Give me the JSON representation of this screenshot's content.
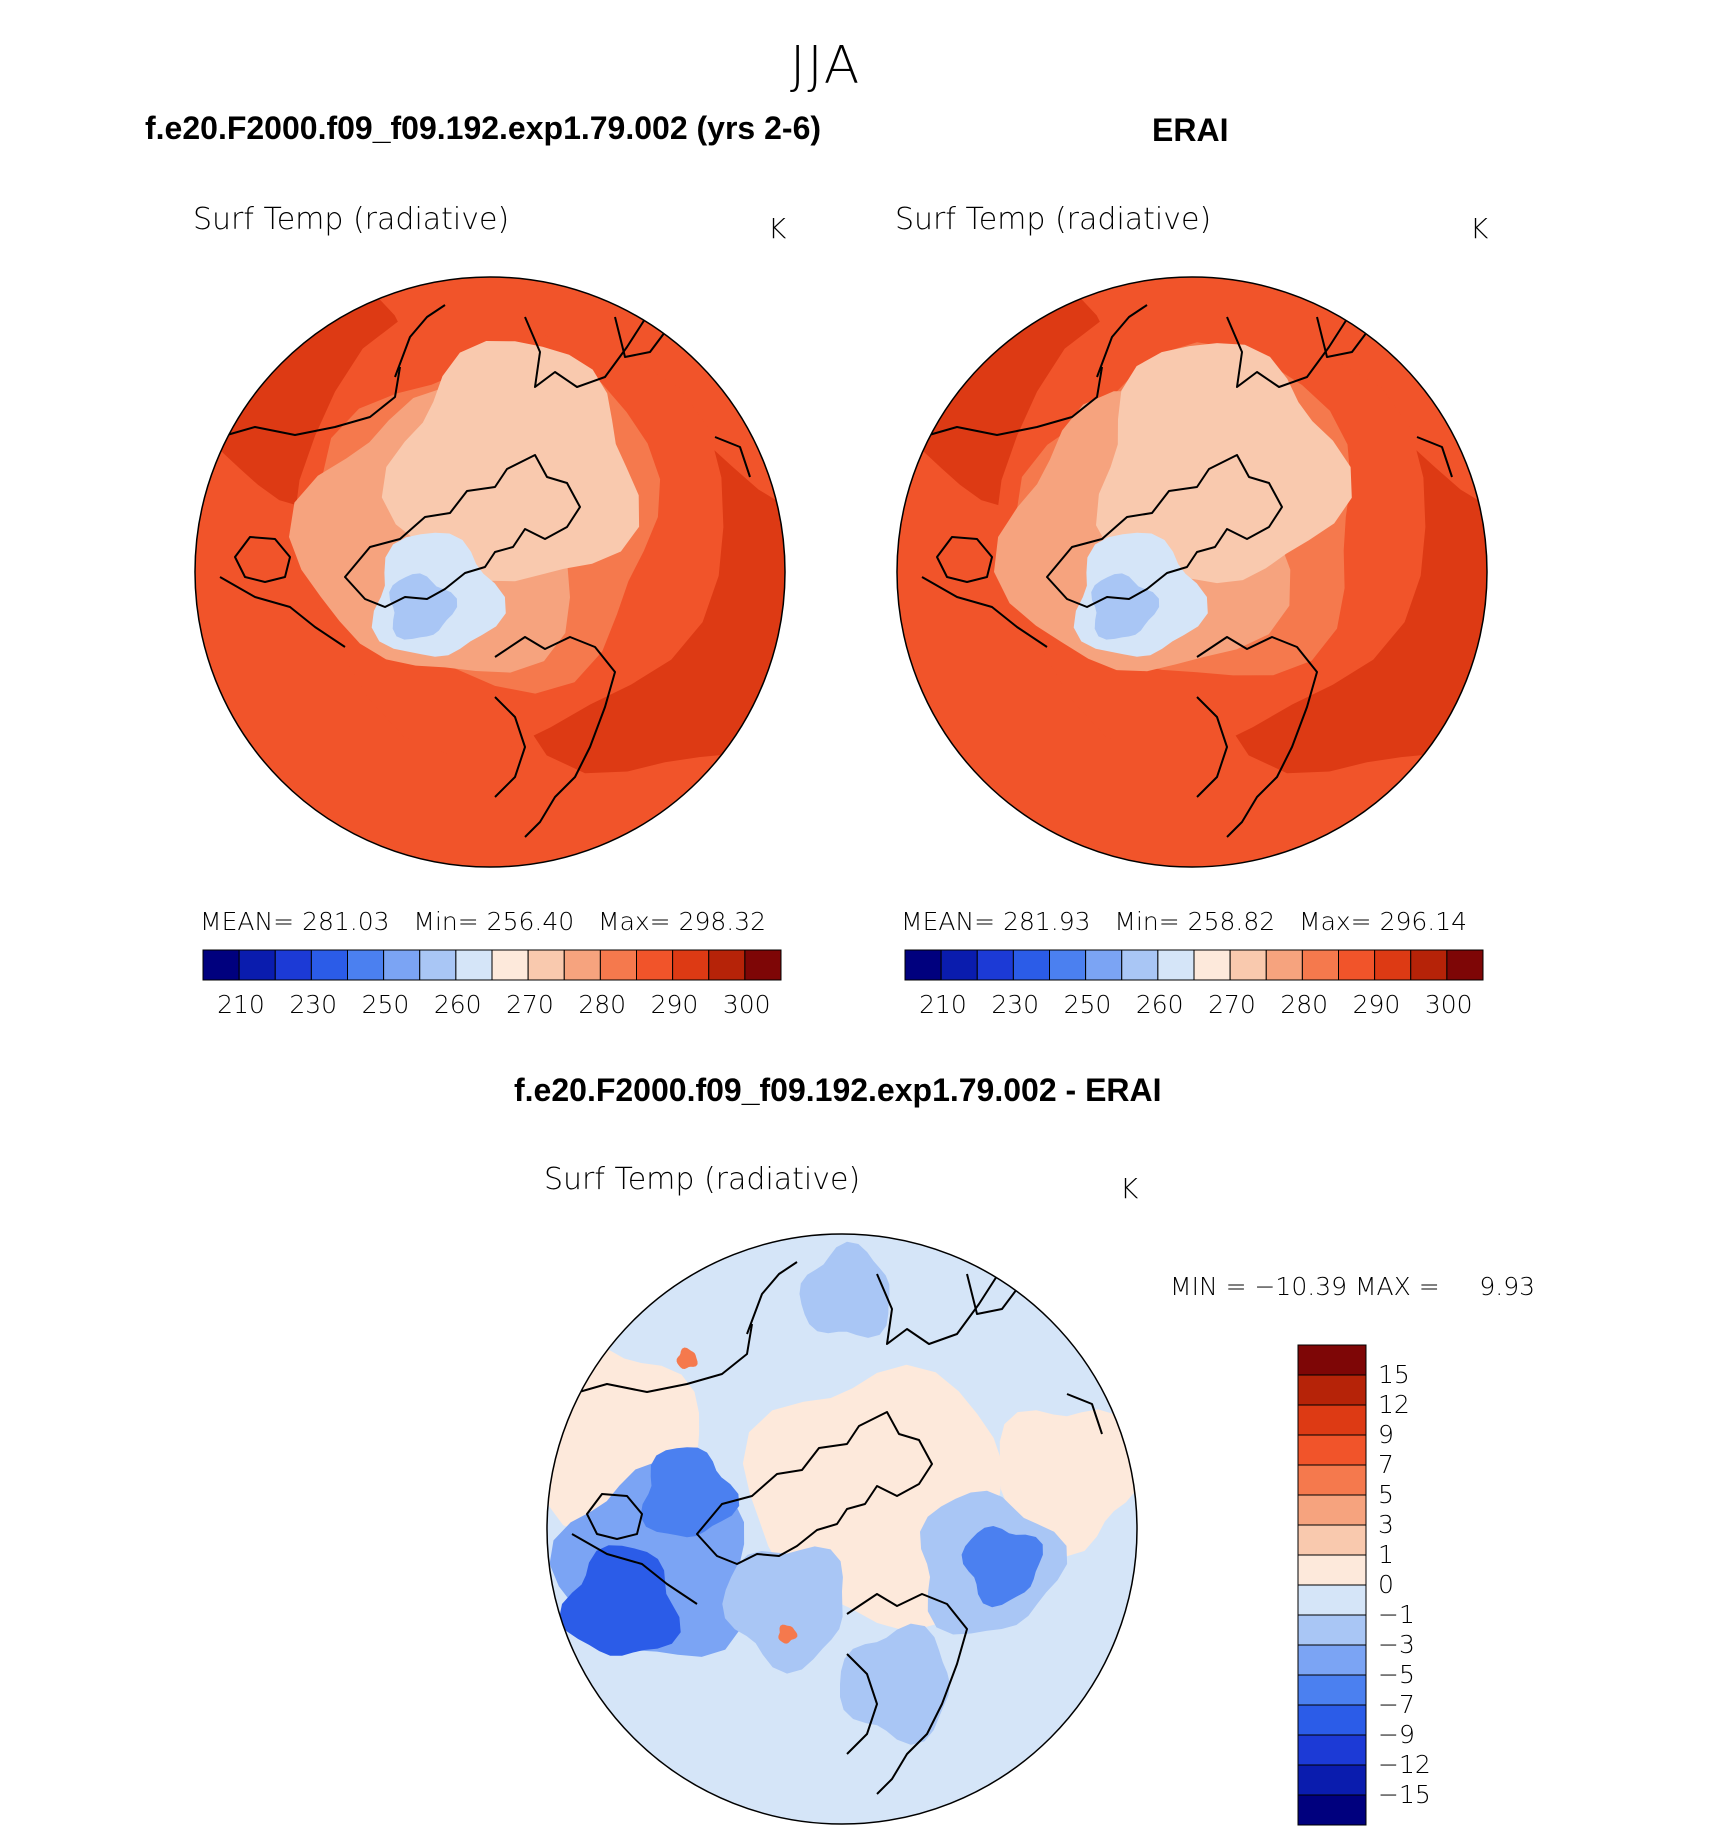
{
  "figure": {
    "season": "JJA",
    "model_title": "f.e20.F2000.f09_f09.192.exp1.79.002 (yrs 2-6)",
    "obs_title": "ERAI",
    "diff_title": "f.e20.F2000.f09_f09.192.exp1.79.002 - ERAI"
  },
  "chart_data": [
    {
      "type": "heatmap",
      "panel": "model",
      "title": "Surf Temp (radiative)",
      "units": "K",
      "projection": "polar-stereographic (North Pole)",
      "stats": {
        "mean_label": "MEAN=",
        "mean": "281.03",
        "min_label": "Min=",
        "min": "256.40",
        "max_label": "Max=",
        "max": "298.32"
      },
      "colorbar": {
        "colors": [
          "#00007e",
          "#0a1cae",
          "#1c3ad6",
          "#2b5ce8",
          "#4b80f0",
          "#7ba4f4",
          "#a9c6f5",
          "#d5e5f8",
          "#fde9db",
          "#f9c9ae",
          "#f6a37e",
          "#f5794d",
          "#f1542a",
          "#dd3a14",
          "#b62308",
          "#7e0606"
        ],
        "tick_labels": [
          "210",
          "230",
          "250",
          "260",
          "270",
          "280",
          "290",
          "300"
        ]
      }
    },
    {
      "type": "heatmap",
      "panel": "obs",
      "title": "Surf Temp (radiative)",
      "units": "K",
      "projection": "polar-stereographic (North Pole)",
      "stats": {
        "mean_label": "MEAN=",
        "mean": "281.93",
        "min_label": "Min=",
        "min": "258.82",
        "max_label": "Max=",
        "max": "296.14"
      },
      "colorbar": {
        "colors": [
          "#00007e",
          "#0a1cae",
          "#1c3ad6",
          "#2b5ce8",
          "#4b80f0",
          "#7ba4f4",
          "#a9c6f5",
          "#d5e5f8",
          "#fde9db",
          "#f9c9ae",
          "#f6a37e",
          "#f5794d",
          "#f1542a",
          "#dd3a14",
          "#b62308",
          "#7e0606"
        ],
        "tick_labels": [
          "210",
          "230",
          "250",
          "260",
          "270",
          "280",
          "290",
          "300"
        ]
      }
    },
    {
      "type": "heatmap",
      "panel": "difference",
      "title": "Surf Temp (radiative)",
      "units": "K",
      "projection": "polar-stereographic (North Pole)",
      "stats": {
        "text": "MIN = −10.39 MAX =",
        "max": "9.93"
      },
      "colorbar": {
        "colors": [
          "#7e0606",
          "#b62308",
          "#dd3a14",
          "#f1542a",
          "#f5794d",
          "#f6a37e",
          "#f9c9ae",
          "#fde9db",
          "#d5e5f8",
          "#a9c6f5",
          "#7ba4f4",
          "#4b80f0",
          "#2b5ce8",
          "#1c3ad6",
          "#0a1cae",
          "#00007e"
        ],
        "tick_labels": [
          "15",
          "12",
          "9",
          "7",
          "5",
          "3",
          "1",
          "0",
          "−1",
          "−3",
          "−5",
          "−7",
          "−9",
          "−12",
          "−15"
        ]
      }
    }
  ]
}
